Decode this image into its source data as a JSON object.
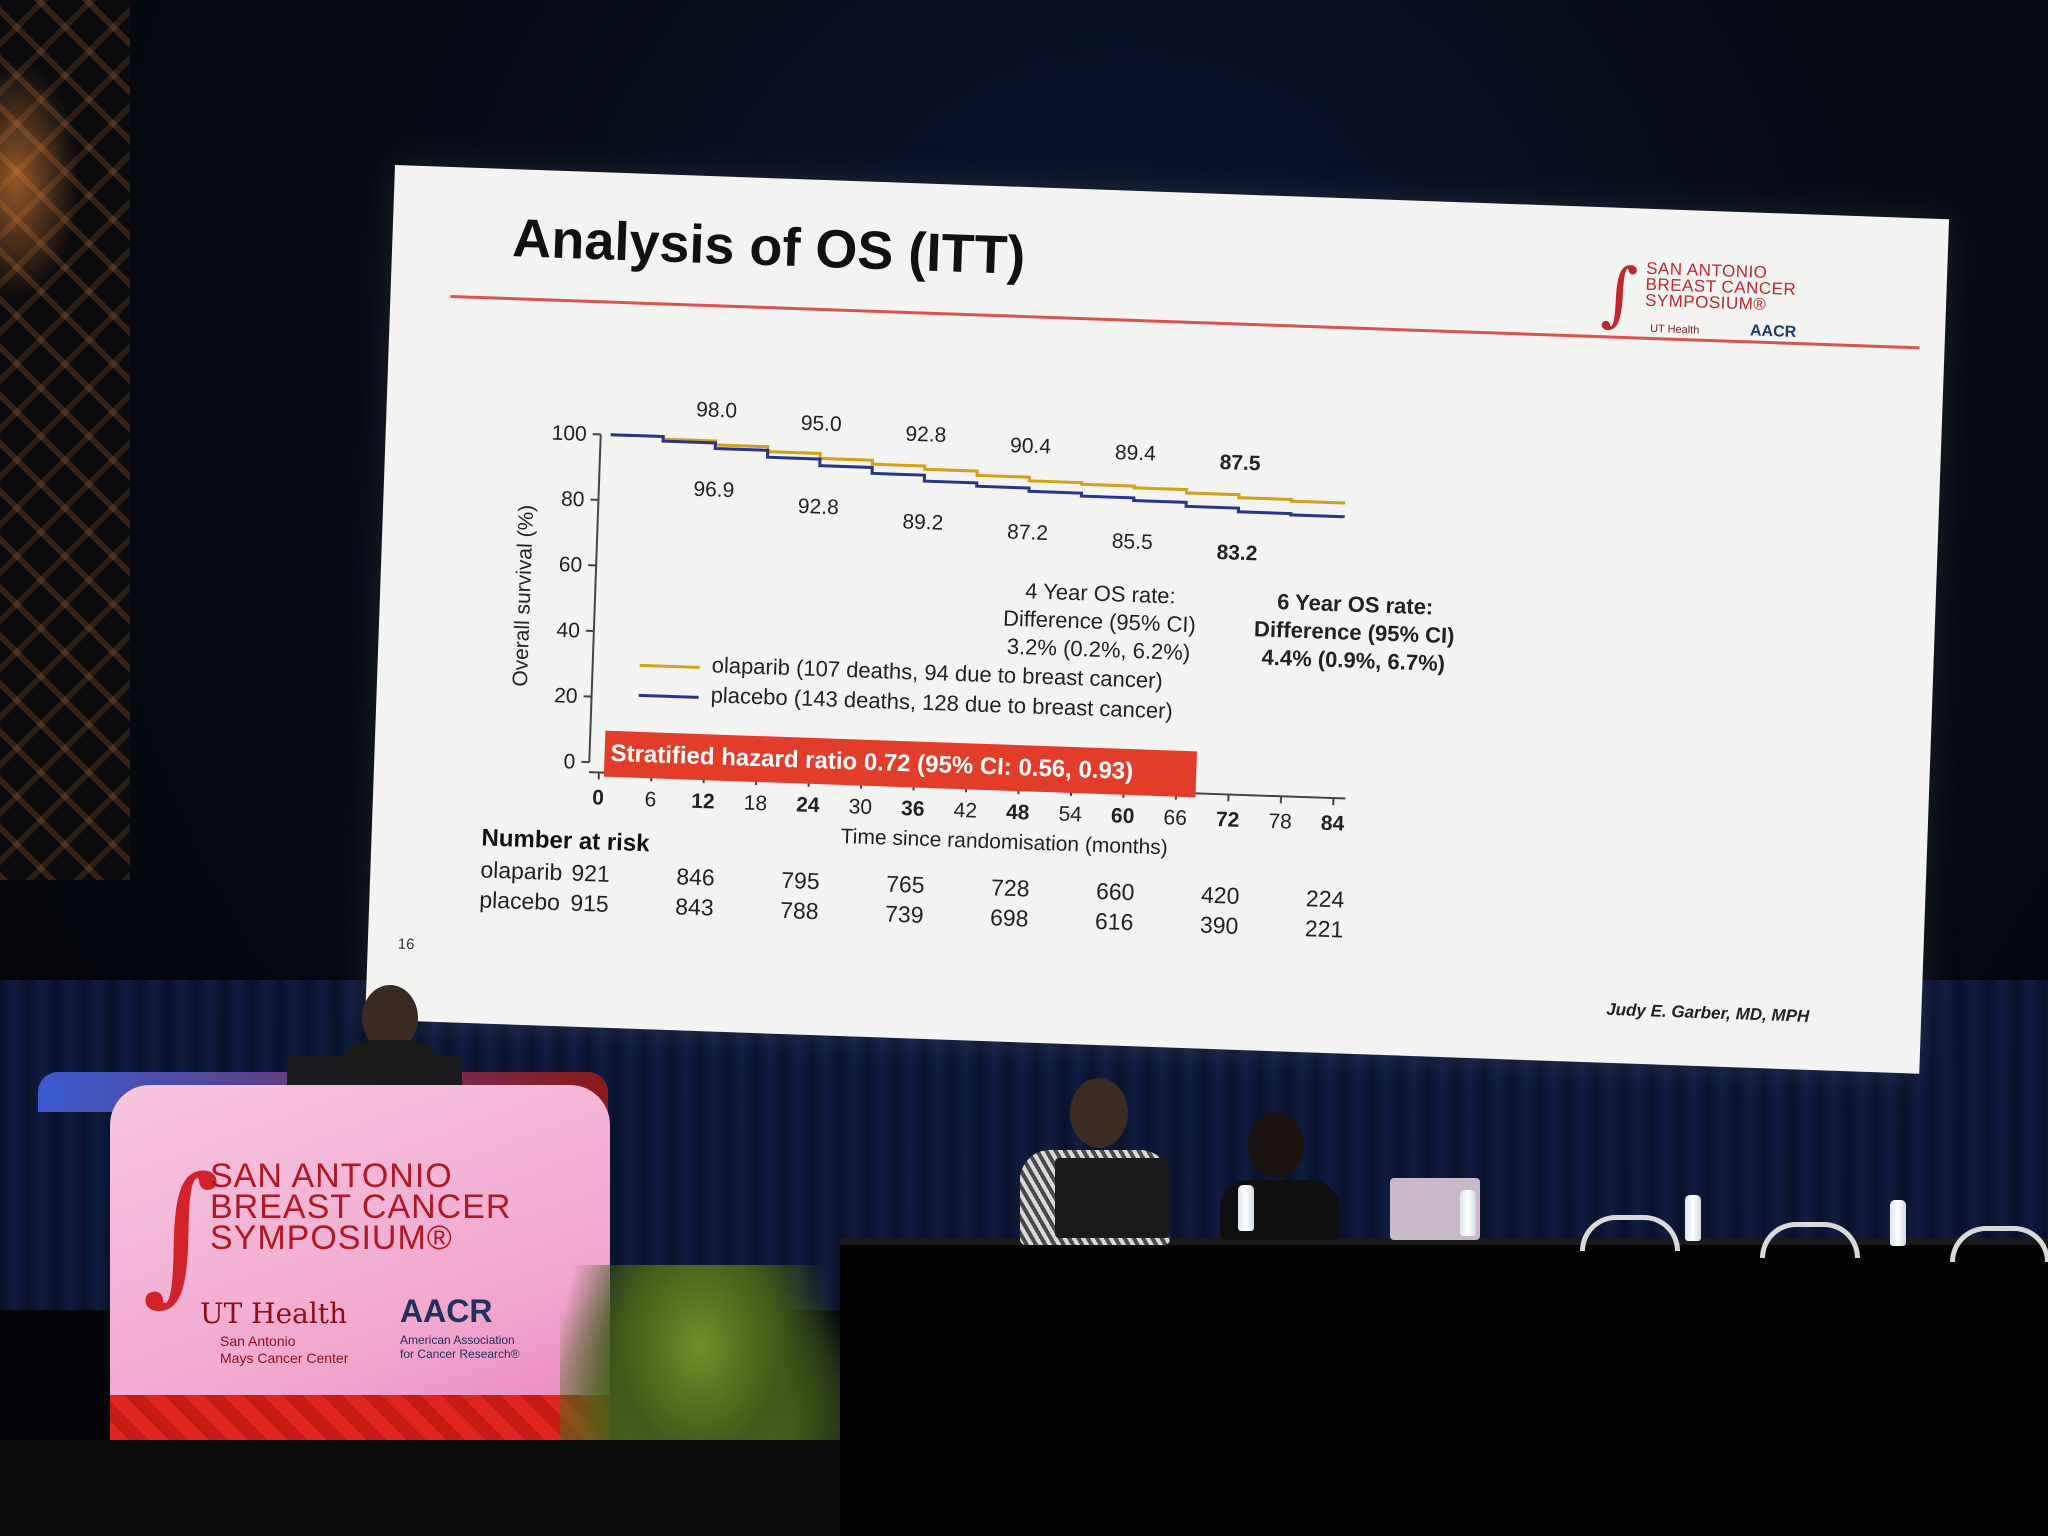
{
  "slide": {
    "title": "Analysis of OS (ITT)",
    "slide_number": "16",
    "author": "Judy E. Garber, MD, MPH",
    "logo": {
      "line1": "SAN ANTONIO",
      "line2": "BREAST CANCER",
      "line3": "SYMPOSIUM®",
      "ut_health": "UT Health",
      "aacr": "AACR"
    },
    "chart_data": {
      "type": "line",
      "ylabel": "Overall survival (%)",
      "xlabel": "Time since randomisation (months)",
      "ylim": [
        0,
        100
      ],
      "xlim": [
        0,
        84
      ],
      "y_ticks": [
        "0",
        "20",
        "40",
        "60",
        "80",
        "100"
      ],
      "x_ticks": [
        "0",
        "6",
        "12",
        "18",
        "24",
        "30",
        "36",
        "42",
        "48",
        "54",
        "60",
        "66",
        "72",
        "78",
        "84"
      ],
      "x_ticks_bold": [
        "0",
        "12",
        "24",
        "36",
        "48",
        "60",
        "72",
        "84"
      ],
      "series": [
        {
          "name": "olaparib (107 deaths, 94 due to breast cancer)",
          "color": "#d4a017",
          "x": [
            0,
            6,
            12,
            18,
            24,
            30,
            36,
            42,
            48,
            54,
            60,
            66,
            72,
            78,
            84
          ],
          "y": [
            100,
            99.2,
            98.0,
            96.5,
            95.0,
            93.8,
            92.8,
            91.5,
            90.4,
            89.9,
            89.4,
            88.4,
            87.5,
            87.0,
            86.6
          ],
          "point_labels": [
            {
              "x": 12,
              "label": "98.0"
            },
            {
              "x": 24,
              "label": "95.0"
            },
            {
              "x": 36,
              "label": "92.8"
            },
            {
              "x": 48,
              "label": "90.4"
            },
            {
              "x": 60,
              "label": "89.4"
            },
            {
              "x": 72,
              "label": "87.5",
              "bold": true
            }
          ]
        },
        {
          "name": "placebo (143 deaths, 128 due to breast cancer)",
          "color": "#27348b",
          "x": [
            0,
            6,
            12,
            18,
            24,
            30,
            36,
            42,
            48,
            54,
            60,
            66,
            72,
            78,
            84
          ],
          "y": [
            100,
            98.6,
            96.9,
            94.8,
            92.8,
            91.0,
            89.2,
            88.2,
            87.2,
            86.3,
            85.5,
            84.3,
            83.2,
            82.8,
            82.5
          ],
          "point_labels": [
            {
              "x": 12,
              "label": "96.9"
            },
            {
              "x": 24,
              "label": "92.8"
            },
            {
              "x": 36,
              "label": "89.2"
            },
            {
              "x": 48,
              "label": "87.2"
            },
            {
              "x": 60,
              "label": "85.5"
            },
            {
              "x": 72,
              "label": "83.2",
              "bold": true
            }
          ]
        }
      ],
      "legend_placement": "lower-left"
    },
    "annotations": {
      "four_year_line1": "4 Year OS rate:",
      "four_year_line2": "Difference (95% CI)",
      "four_year_line3": "3.2% (0.2%, 6.2%)",
      "six_year_line1": "6 Year OS rate:",
      "six_year_line2": "Difference (95% CI)",
      "six_year_line3": "4.4% (0.9%, 6.7%)",
      "hazard_ratio": "Stratified hazard ratio 0.72 (95% CI: 0.56, 0.93)"
    },
    "number_at_risk": {
      "title": "Number at risk",
      "rows": [
        {
          "label": "olaparib",
          "values": [
            "921",
            "846",
            "795",
            "765",
            "728",
            "660",
            "420",
            "224"
          ]
        },
        {
          "label": "placebo",
          "values": [
            "915",
            "843",
            "788",
            "739",
            "698",
            "616",
            "390",
            "221"
          ]
        }
      ]
    }
  },
  "podium": {
    "line1": "SAN ANTONIO",
    "line2": "BREAST CANCER",
    "line3": "SYMPOSIUM®",
    "ut_health": "UT Health",
    "ut_sub1": "San Antonio",
    "ut_sub2": "Mays Cancer Center",
    "aacr": "AACR",
    "aacr_sub1": "American Association",
    "aacr_sub2": "for Cancer Research®"
  }
}
